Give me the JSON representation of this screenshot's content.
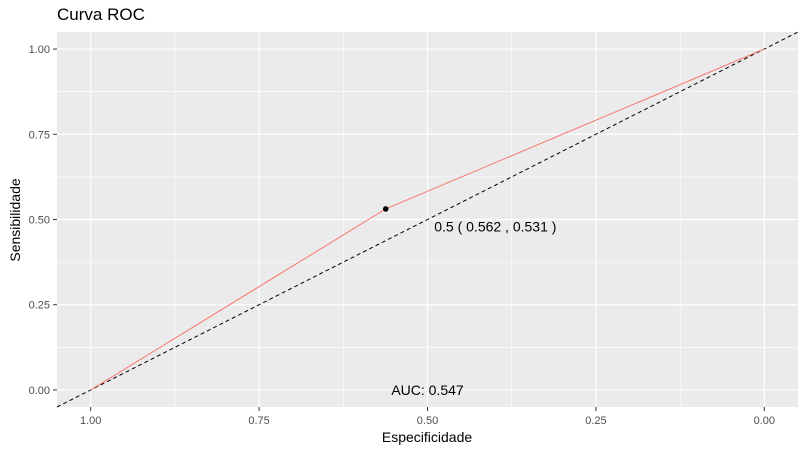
{
  "chart_data": {
    "type": "line",
    "title": "Curva ROC",
    "xlabel": "Especificidade",
    "ylabel": "Sensibilidade",
    "x_reversed": true,
    "xlim": [
      1.05,
      -0.05
    ],
    "ylim": [
      -0.05,
      1.05
    ],
    "x_ticks": [
      1.0,
      0.75,
      0.5,
      0.25,
      0.0
    ],
    "x_tick_labels": [
      "1.00",
      "0.75",
      "0.50",
      "0.25",
      "0.00"
    ],
    "y_ticks": [
      0.0,
      0.25,
      0.5,
      0.75,
      1.0
    ],
    "y_tick_labels": [
      "0.00",
      "0.25",
      "0.50",
      "0.75",
      "1.00"
    ],
    "grid": true,
    "panel_background": "#ebebeb",
    "grid_color": "#ffffff",
    "series": [
      {
        "x": [
          1.0,
          0.562,
          0.0
        ],
        "y": [
          0.0,
          0.531,
          1.0
        ],
        "color": "#f8766d"
      }
    ],
    "reference_line": {
      "x": [
        1.05,
        -0.05
      ],
      "y": [
        -0.05,
        1.05
      ],
      "style": "dashed",
      "color": "#000000"
    },
    "threshold_point": {
      "x": 0.562,
      "y": 0.531
    },
    "annotations": [
      {
        "text": "0.5 ( 0.562 , 0.531 )",
        "x": 0.49,
        "y": 0.48
      },
      {
        "text": "AUC:  0.547",
        "x": 0.5,
        "y": 0.0
      }
    ]
  }
}
